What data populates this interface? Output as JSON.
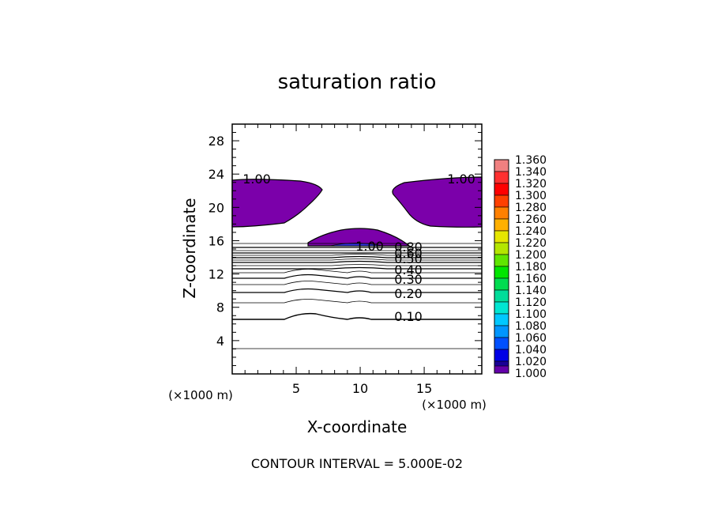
{
  "chart_data": {
    "type": "contour",
    "title": "saturation ratio",
    "xlabel": "X-coordinate",
    "ylabel": "Z-coordinate",
    "xunit_labels": [
      "(×1000 m)",
      "(×1000 m)"
    ],
    "xlim": [
      0,
      19.5
    ],
    "ylim": [
      0,
      30
    ],
    "xticks": [
      5,
      10,
      15
    ],
    "yticks": [
      4,
      8,
      12,
      16,
      20,
      24,
      28
    ],
    "footer": "CONTOUR INTERVAL = 5.000E-02",
    "contour_labels": [
      "1.00",
      "1.00",
      "1.00",
      "0.80",
      "0.60",
      "0.50",
      "0.40",
      "0.30",
      "0.20",
      "0.10"
    ],
    "colorbar": {
      "levels": [
        "1.360",
        "1.340",
        "1.320",
        "1.300",
        "1.280",
        "1.260",
        "1.240",
        "1.220",
        "1.200",
        "1.180",
        "1.160",
        "1.140",
        "1.120",
        "1.100",
        "1.080",
        "1.060",
        "1.040",
        "1.020",
        "1.000"
      ],
      "colors": [
        "#f08080",
        "#ff3030",
        "#ff0000",
        "#ff4000",
        "#ff8000",
        "#ffb000",
        "#e6e600",
        "#b4e600",
        "#60e600",
        "#00e600",
        "#00dc50",
        "#00dc9a",
        "#00e6d2",
        "#00c8ff",
        "#0096ff",
        "#0050ff",
        "#0000e6",
        "#1a0096",
        "#6400aa"
      ]
    },
    "fill_regions": [
      {
        "color": "#7b00aa",
        "name": "left-upper-cell"
      },
      {
        "color": "#7b00aa",
        "name": "right-upper-cell"
      },
      {
        "color": "#7b00aa",
        "name": "central-cell"
      }
    ]
  }
}
